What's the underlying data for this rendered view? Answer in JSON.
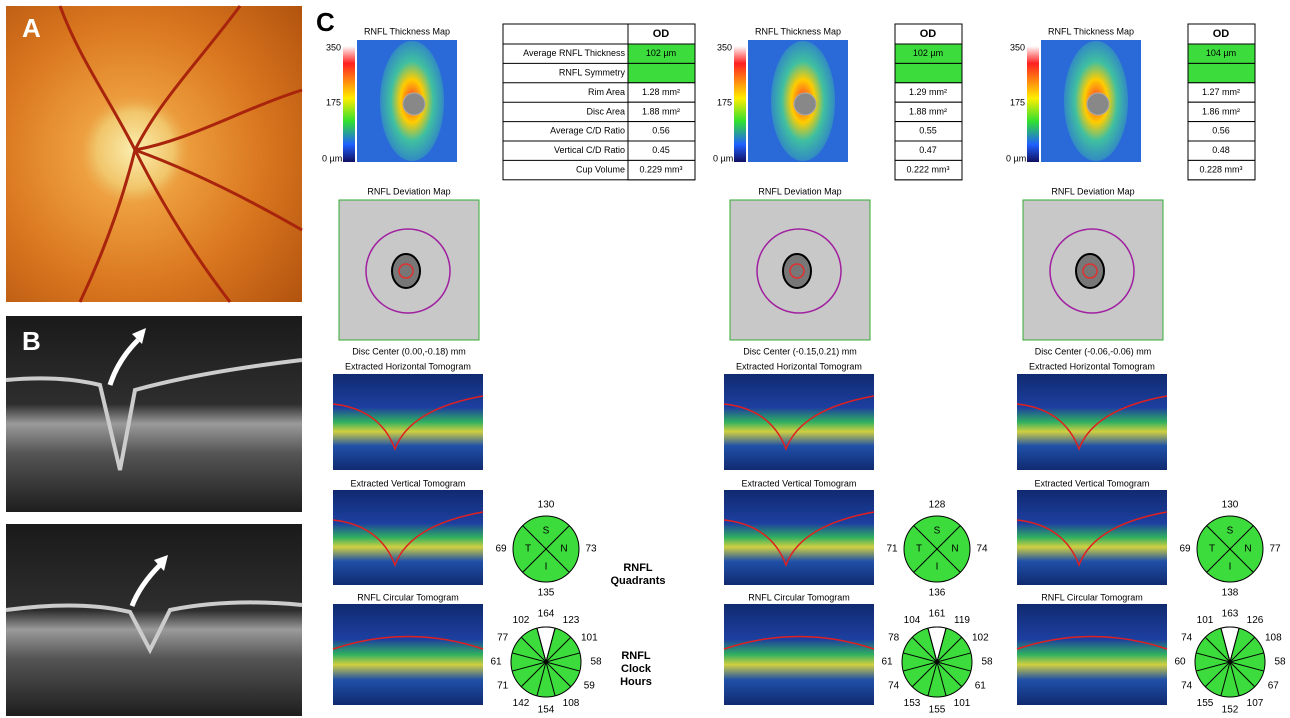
{
  "panel_labels": [
    "A",
    "B",
    "C"
  ],
  "table": {
    "header": "OD",
    "row_labels": [
      "Average RNFL Thickness",
      "RNFL Symmetry",
      "Rim Area",
      "Disc Area",
      "Average C/D Ratio",
      "Vertical C/D Ratio",
      "Cup Volume"
    ]
  },
  "quadrant_letters": [
    "S",
    "T",
    "N",
    "I"
  ],
  "quadrants_label": [
    "RNFL",
    "Quadrants"
  ],
  "clock_hours_label": [
    "RNFL",
    "Clock",
    "Hours"
  ],
  "scans": [
    {
      "thickness_title": "RNFL Thickness Map",
      "scale": [
        "350",
        "175",
        "0 µm"
      ],
      "values": [
        "102 µm",
        null,
        "1.28 mm²",
        "1.88 mm²",
        "0.56",
        "0.45",
        "0.229 mm³"
      ],
      "deviation_title": "RNFL Deviation Map",
      "disc_center": "Disc Center  (0.00,-0.18) mm",
      "horizontal_title": "Extracted Horizontal Tomogram",
      "vertical_title": "Extracted Vertical Tomogram",
      "circular_title": "RNFL Circular Tomogram",
      "quadrants": {
        "S": 130,
        "T": 69,
        "N": 73,
        "I": 135
      },
      "clock_hours": [
        164,
        123,
        101,
        58,
        59,
        108,
        154,
        142,
        71,
        61,
        77,
        102
      ]
    },
    {
      "thickness_title": "RNFL Thickness Map",
      "scale": [
        "350",
        "175",
        "0 µm"
      ],
      "values": [
        "102 µm",
        null,
        "1.29 mm²",
        "1.88 mm²",
        "0.55",
        "0.47",
        "0.222 mm³"
      ],
      "deviation_title": "RNFL Deviation Map",
      "disc_center": "Disc Center  (-0.15,0.21) mm",
      "horizontal_title": "Extracted Horizontal Tomogram",
      "vertical_title": "Extracted Vertical Tomogram",
      "circular_title": "RNFL Circular Tomogram",
      "quadrants": {
        "S": 128,
        "T": 71,
        "N": 74,
        "I": 136
      },
      "clock_hours": [
        161,
        119,
        102,
        58,
        61,
        101,
        155,
        153,
        74,
        61,
        78,
        104
      ]
    },
    {
      "thickness_title": "RNFL Thickness Map",
      "scale": [
        "350",
        "175",
        "0 µm"
      ],
      "values": [
        "104 µm",
        null,
        "1.27 mm²",
        "1.86 mm²",
        "0.56",
        "0.48",
        "0.228 mm³"
      ],
      "deviation_title": "RNFL Deviation Map",
      "disc_center": "Disc Center  (-0.06,-0.06) mm",
      "horizontal_title": "Extracted Horizontal Tomogram",
      "vertical_title": "Extracted Vertical Tomogram",
      "circular_title": "RNFL Circular Tomogram",
      "quadrants": {
        "S": 130,
        "T": 69,
        "N": 77,
        "I": 138
      },
      "clock_hours": [
        163,
        126,
        108,
        58,
        67,
        107,
        152,
        155,
        74,
        60,
        74,
        101
      ]
    }
  ]
}
